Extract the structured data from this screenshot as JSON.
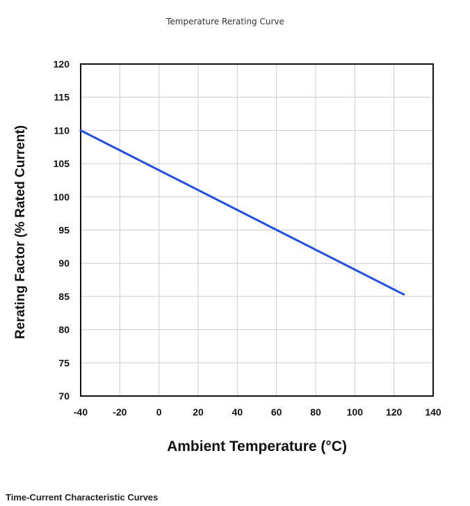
{
  "page": {
    "title": "Temperature Rerating Curve",
    "section_heading": "Time-Current Characteristic Curves"
  },
  "chart_data": {
    "type": "line",
    "title": "Temperature Rerating Curve",
    "xlabel": "Ambient Temperature (°C)",
    "ylabel": "Rerating Factor (% Rated Current)",
    "xlim": [
      -40,
      140
    ],
    "ylim": [
      70,
      120
    ],
    "xticks": [
      -40,
      -20,
      0,
      20,
      40,
      60,
      80,
      100,
      120,
      140
    ],
    "yticks": [
      70,
      75,
      80,
      85,
      90,
      95,
      100,
      105,
      110,
      115,
      120
    ],
    "xtick_labels": [
      "-40",
      "-20",
      "0",
      "20",
      "40",
      "60",
      "80",
      "100",
      "120",
      "140"
    ],
    "ytick_labels": [
      "70",
      "75",
      "80",
      "85",
      "90",
      "95",
      "100",
      "105",
      "110",
      "115",
      "120"
    ],
    "grid": true,
    "series": [
      {
        "color": "#1f4fe0",
        "x": [
          -40,
          125
        ],
        "y": [
          110,
          85.3
        ]
      }
    ]
  }
}
